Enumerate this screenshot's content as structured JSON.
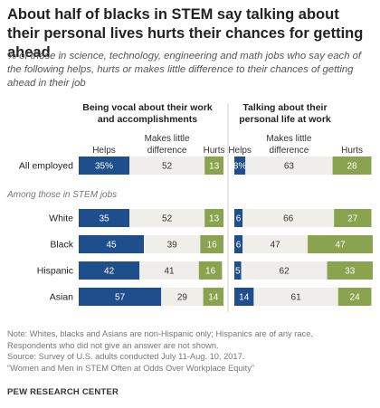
{
  "title": "About half of blacks in STEM say talking about their personal lives hurts their chances for getting ahead",
  "subtitle": "% of those in science, technology, engineering and math jobs who say each of the following helps, hurts or makes little difference to their chances of getting ahead in their job",
  "colors": {
    "helps": "#1f4e8c",
    "little_difference": "#efeeea",
    "hurts": "#8aa34e"
  },
  "chart_data": {
    "type": "bar",
    "orientation": "horizontal-stacked",
    "panels": [
      {
        "title": "Being vocal about their work and accomplishments",
        "column_labels": [
          "Helps",
          "Makes little difference",
          "Hurts"
        ]
      },
      {
        "title": "Talking about their personal life at work",
        "column_labels": [
          "Helps",
          "Makes little difference",
          "Hurts"
        ]
      }
    ],
    "group_label": "Among those in STEM jobs",
    "categories": [
      "All employed",
      "White",
      "Black",
      "Hispanic",
      "Asian"
    ],
    "rows": [
      {
        "label": "All employed",
        "panel1": [
          35,
          52,
          13
        ],
        "panel2": [
          8,
          63,
          28
        ],
        "labels1": [
          "35%",
          "52",
          "13"
        ],
        "labels2": [
          "8%",
          "63",
          "28"
        ]
      },
      {
        "label": "White",
        "panel1": [
          35,
          52,
          13
        ],
        "panel2": [
          6,
          66,
          27
        ],
        "labels1": [
          "35",
          "52",
          "13"
        ],
        "labels2": [
          "6",
          "66",
          "27"
        ]
      },
      {
        "label": "Black",
        "panel1": [
          45,
          39,
          16
        ],
        "panel2": [
          6,
          47,
          47
        ],
        "labels1": [
          "45",
          "39",
          "16"
        ],
        "labels2": [
          "6",
          "47",
          "47"
        ]
      },
      {
        "label": "Hispanic",
        "panel1": [
          42,
          41,
          16
        ],
        "panel2": [
          5,
          62,
          33
        ],
        "labels1": [
          "42",
          "41",
          "16"
        ],
        "labels2": [
          "5",
          "62",
          "33"
        ]
      },
      {
        "label": "Asian",
        "panel1": [
          57,
          29,
          14
        ],
        "panel2": [
          14,
          61,
          24
        ],
        "labels1": [
          "57",
          "29",
          "14"
        ],
        "labels2": [
          "14",
          "61",
          "24"
        ]
      }
    ]
  },
  "notes": [
    "Note: Whites, blacks and Asians are non-Hispanic only; Hispanics are of any race.",
    "Respondents who did not give an answer are not shown.",
    "Source: Survey of U.S. adults conducted July 11-Aug. 10, 2017.",
    "“Women and Men in STEM Often at Odds Over Workplace Equity”"
  ],
  "brand": "PEW RESEARCH CENTER"
}
